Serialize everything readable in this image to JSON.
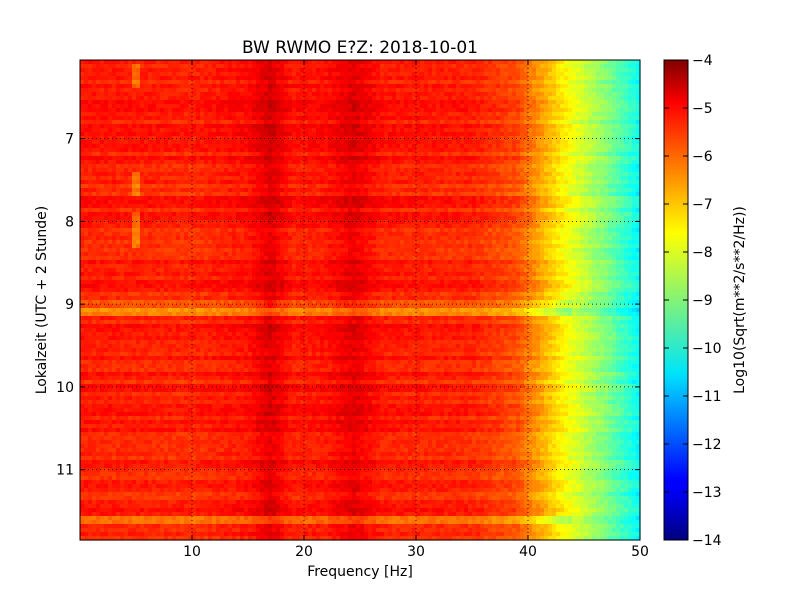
{
  "chart_data": {
    "type": "heatmap",
    "title": "BW RWMO E?Z: 2018-10-01",
    "xlabel": "Frequency [Hz]",
    "ylabel": "Lokalzeit (UTC + 2 Stunde)",
    "xlim": [
      0,
      50
    ],
    "ylim": [
      11.85,
      6.05
    ],
    "y_inverted": true,
    "x_ticks": [
      10,
      20,
      30,
      40,
      50
    ],
    "y_ticks": [
      7,
      8,
      9,
      10,
      11
    ],
    "grid": true,
    "grid_style": "dotted",
    "colormap": "jet",
    "colorbar": {
      "label": "Log10(Sqrt(m**2/s**2/Hz))",
      "min": -14,
      "max": -4,
      "ticks": [
        -4,
        -5,
        -6,
        -7,
        -8,
        -9,
        -10,
        -11,
        -12,
        -13,
        -14
      ]
    },
    "frequency_level_profile": [
      {
        "f": 0,
        "v": -5.5
      },
      {
        "f": 10,
        "v": -5.6
      },
      {
        "f": 15,
        "v": -5.4
      },
      {
        "f": 17,
        "v": -4.9
      },
      {
        "f": 19,
        "v": -5.5
      },
      {
        "f": 22,
        "v": -5.4
      },
      {
        "f": 24.5,
        "v": -5.0
      },
      {
        "f": 27,
        "v": -5.5
      },
      {
        "f": 35,
        "v": -5.6
      },
      {
        "f": 39,
        "v": -6.0
      },
      {
        "f": 41,
        "v": -6.8
      },
      {
        "f": 43,
        "v": -7.6
      },
      {
        "f": 45,
        "v": -8.3
      },
      {
        "f": 47,
        "v": -9.0
      },
      {
        "f": 49,
        "v": -9.8
      },
      {
        "f": 50,
        "v": -10.2
      }
    ],
    "peak_frequencies_hz": [
      17,
      24.5
    ],
    "loud_time_bands": [
      {
        "t": 9.1,
        "offset": -0.9
      },
      {
        "t": 11.6,
        "offset": -0.8
      },
      {
        "t": 8.3,
        "offset": -0.3
      },
      {
        "t": 9.28,
        "offset": 0.3
      },
      {
        "t": 11.35,
        "offset": -0.3
      },
      {
        "t": 9.0,
        "offset": -0.4
      }
    ]
  }
}
